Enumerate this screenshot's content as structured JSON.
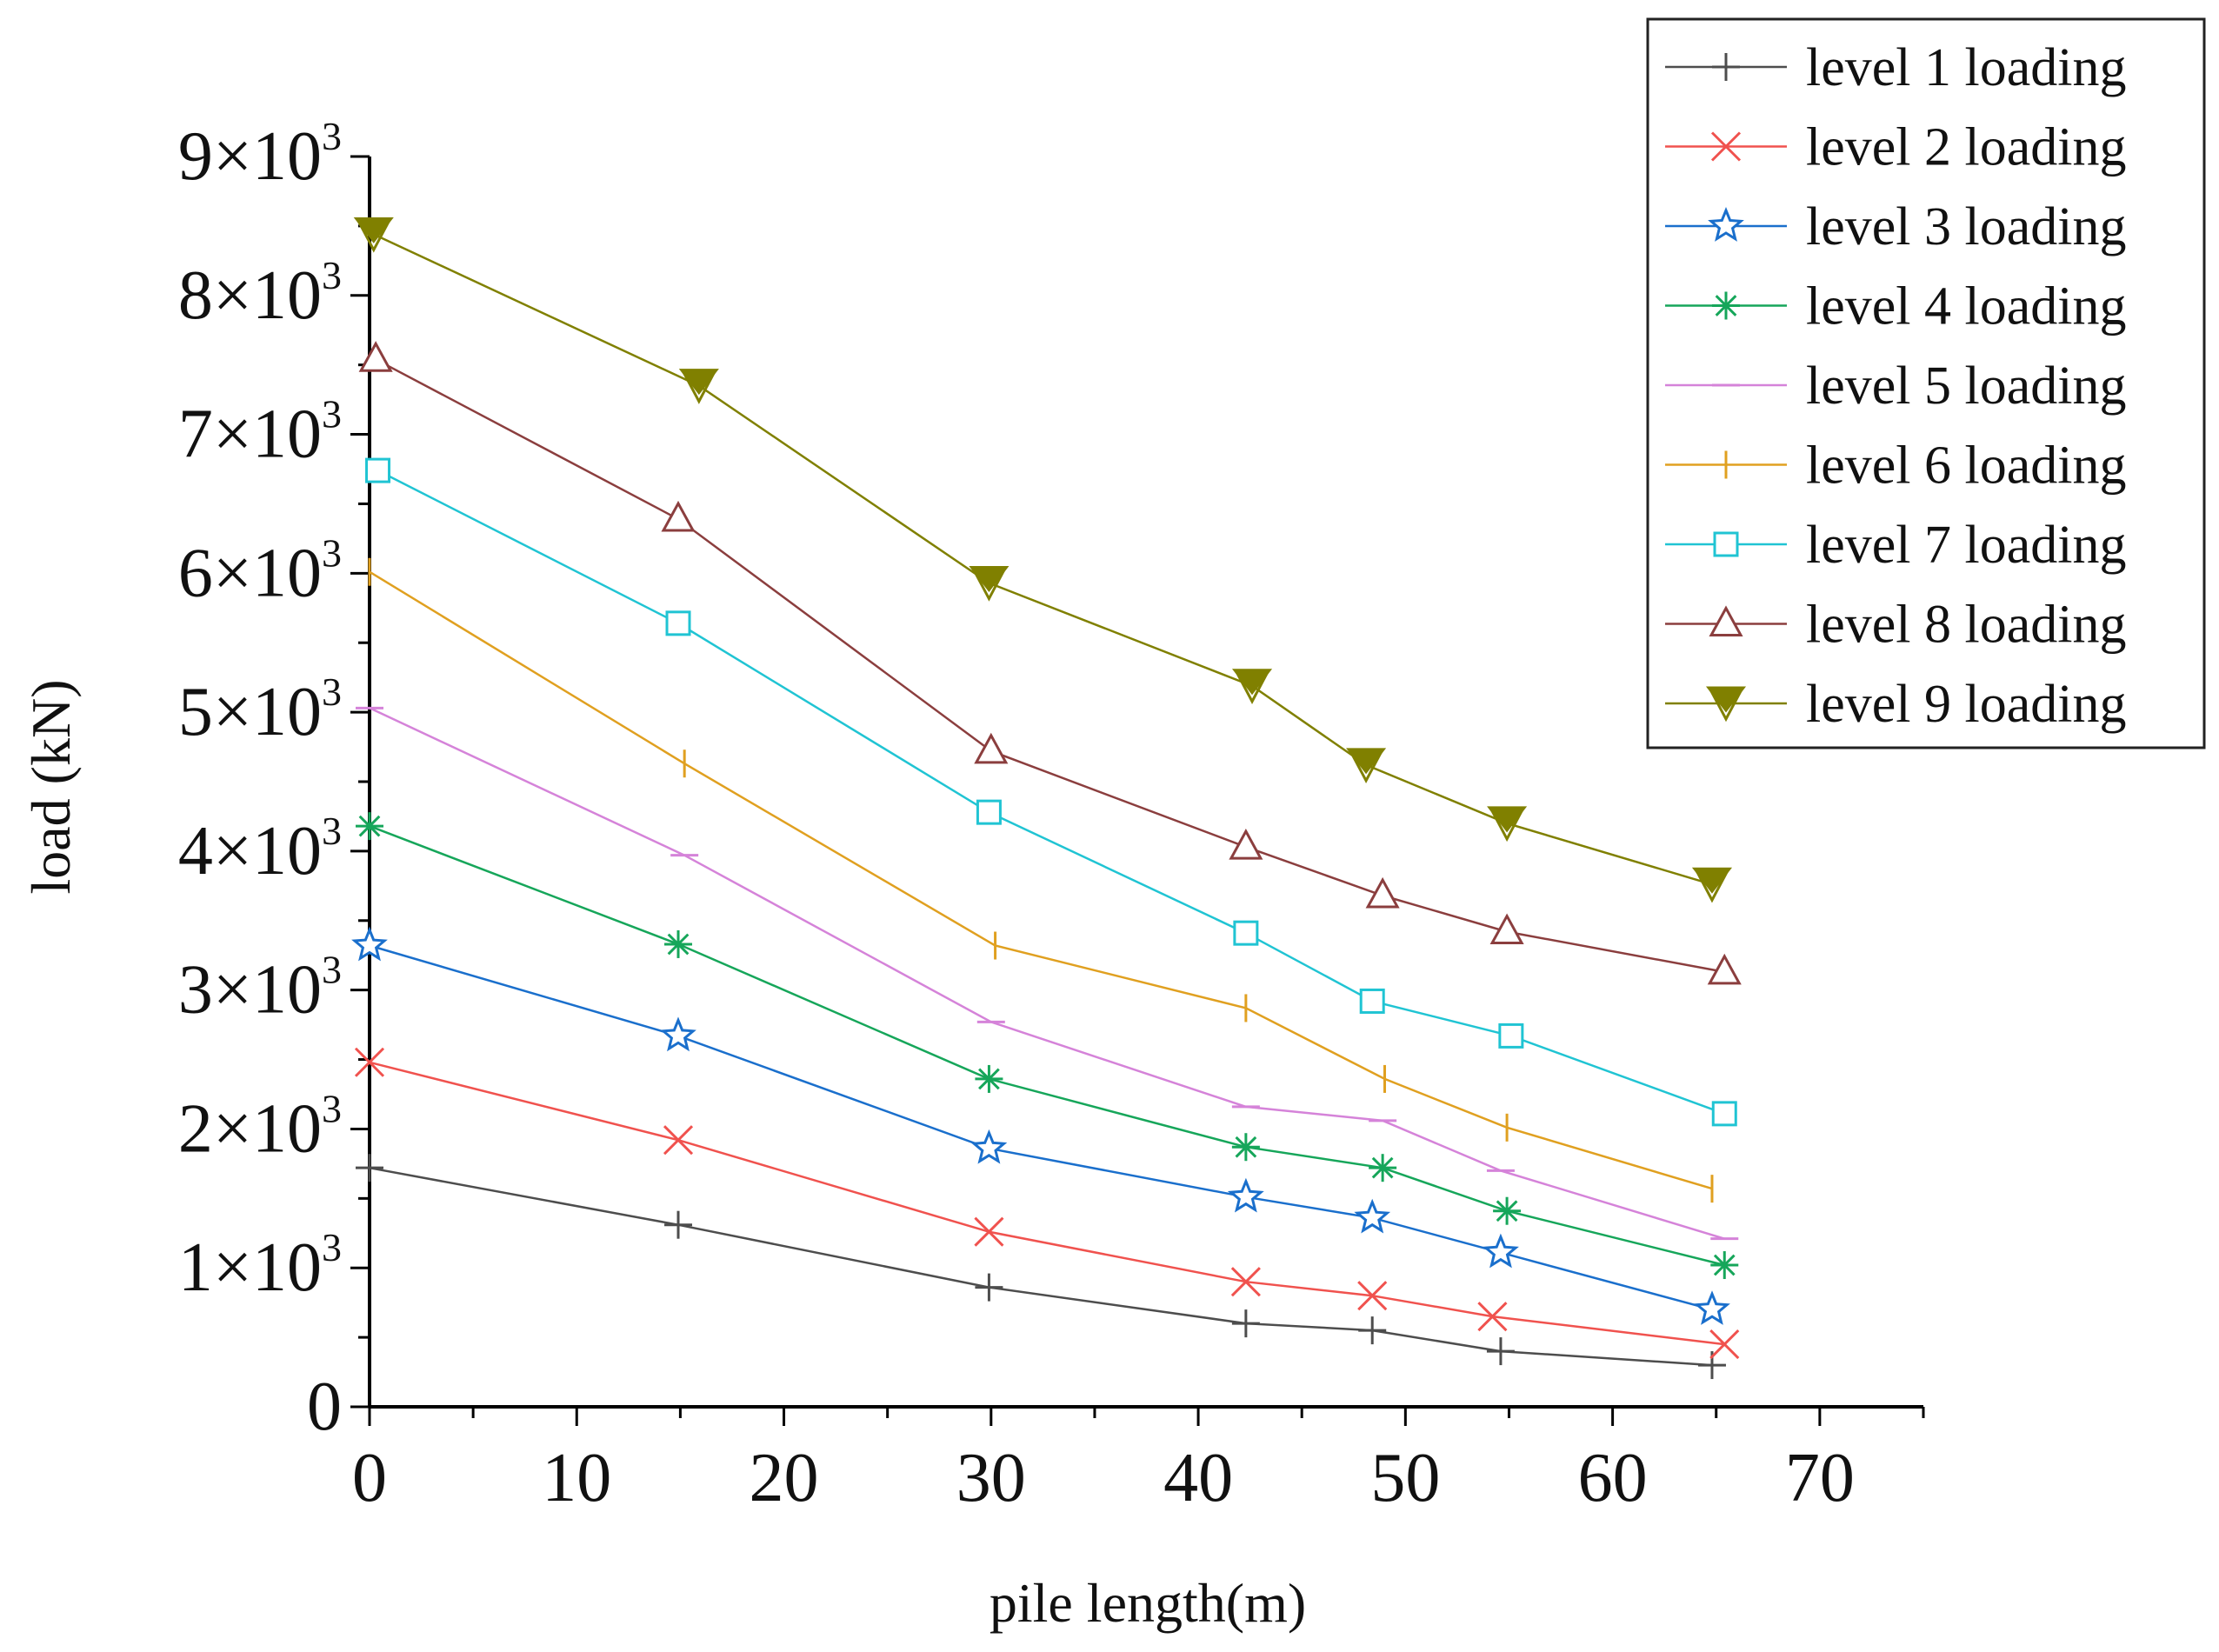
{
  "chart_data": {
    "type": "line",
    "title": "",
    "xlabel": "pile length(m)",
    "ylabel": "load (kN)",
    "xlim": [
      0,
      75
    ],
    "ylim": [
      0,
      9000
    ],
    "x_ticks": [
      0,
      10,
      20,
      30,
      40,
      50,
      60,
      70
    ],
    "x_tick_labels": [
      "0",
      "10",
      "20",
      "30",
      "40",
      "50",
      "60",
      "70"
    ],
    "y_ticks": [
      0,
      1000,
      2000,
      3000,
      4000,
      5000,
      6000,
      7000,
      8000,
      9000
    ],
    "y_tick_labels": [
      {
        "mantissa": "0",
        "exp": ""
      },
      {
        "mantissa": "1×10",
        "exp": "3"
      },
      {
        "mantissa": "2×10",
        "exp": "3"
      },
      {
        "mantissa": "3×10",
        "exp": "3"
      },
      {
        "mantissa": "4×10",
        "exp": "3"
      },
      {
        "mantissa": "5×10",
        "exp": "3"
      },
      {
        "mantissa": "6×10",
        "exp": "3"
      },
      {
        "mantissa": "7×10",
        "exp": "3"
      },
      {
        "mantissa": "8×10",
        "exp": "3"
      },
      {
        "mantissa": "9×10",
        "exp": "3"
      }
    ],
    "grid": false,
    "legend_position": "top-right",
    "series": [
      {
        "name": "level 1 loading",
        "color": "#4d4d4d",
        "marker": "plus",
        "x": [
          0,
          14.9,
          29.9,
          42.3,
          48.4,
          54.6,
          64.8
        ],
        "y": [
          1720,
          1310,
          860,
          600,
          550,
          400,
          300
        ]
      },
      {
        "name": "level 2 loading",
        "color": "#f0524e",
        "marker": "cross",
        "x": [
          0,
          14.9,
          29.9,
          42.3,
          48.4,
          54.2,
          65.4
        ],
        "y": [
          2480,
          1920,
          1260,
          900,
          800,
          650,
          450
        ]
      },
      {
        "name": "level 3 loading",
        "color": "#1a6fcc",
        "marker": "star",
        "x": [
          0,
          14.9,
          29.9,
          42.3,
          48.4,
          54.6,
          64.8
        ],
        "y": [
          3320,
          2670,
          1860,
          1510,
          1360,
          1110,
          700
        ]
      },
      {
        "name": "level 4 loading",
        "color": "#16a65a",
        "marker": "asterisk",
        "x": [
          0,
          14.9,
          29.9,
          42.3,
          48.9,
          54.9,
          65.4
        ],
        "y": [
          4180,
          3330,
          2360,
          1870,
          1720,
          1410,
          1020
        ]
      },
      {
        "name": "level 5 loading",
        "color": "#d583d9",
        "marker": "hline",
        "x": [
          0,
          15.2,
          30.0,
          42.3,
          48.9,
          54.6,
          65.4
        ],
        "y": [
          5030,
          3970,
          2770,
          2160,
          2060,
          1700,
          1210
        ]
      },
      {
        "name": "level 6 loading",
        "color": "#e0a020",
        "marker": "vline",
        "x": [
          0,
          15.2,
          30.2,
          42.3,
          49.0,
          54.9,
          64.8
        ],
        "y": [
          6010,
          4630,
          3320,
          2870,
          2360,
          2010,
          1570
        ]
      },
      {
        "name": "level 7 loading",
        "color": "#20c4d3",
        "marker": "square",
        "x": [
          0.4,
          14.9,
          29.9,
          42.3,
          48.4,
          55.1,
          65.4
        ],
        "y": [
          6740,
          5640,
          4280,
          3410,
          2920,
          2670,
          2110
        ]
      },
      {
        "name": "level 8 loading",
        "color": "#8b3e3e",
        "marker": "triangle",
        "x": [
          0.3,
          14.9,
          30.0,
          42.3,
          48.9,
          54.9,
          65.4
        ],
        "y": [
          7540,
          6390,
          4720,
          4030,
          3680,
          3420,
          3130
        ]
      },
      {
        "name": "level 9 loading",
        "color": "#808000",
        "marker": "triangle-down",
        "x": [
          0.2,
          15.9,
          29.9,
          42.6,
          48.1,
          54.9,
          64.8
        ],
        "y": [
          8440,
          7350,
          5930,
          5190,
          4620,
          4200,
          3760
        ]
      }
    ]
  }
}
